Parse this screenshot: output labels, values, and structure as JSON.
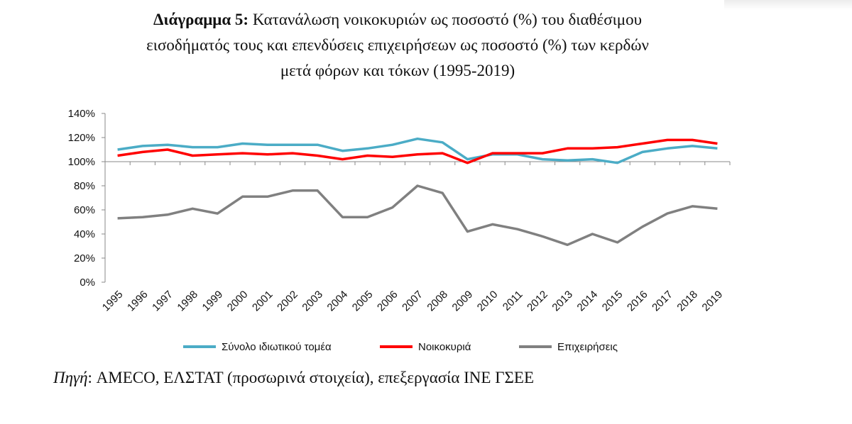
{
  "title": {
    "bold": "Διάγραμμα 5:",
    "line1": "Κατανάλωση νοικοκυριών ως ποσοστό (%) του διαθέσιμου",
    "line2": "εισοδήματός τους και επενδύσεις επιχειρήσεων ως ποσοστό (%) των κερδών",
    "line3": "μετά φόρων και τόκων (1995-2019)"
  },
  "chart_data": {
    "type": "line",
    "x": [
      "1995",
      "1996",
      "1997",
      "1998",
      "1999",
      "2000",
      "2001",
      "2002",
      "2003",
      "2004",
      "2005",
      "2006",
      "2007",
      "2008",
      "2009",
      "2010",
      "2011",
      "2012",
      "2013",
      "2014",
      "2015",
      "2016",
      "2017",
      "2018",
      "2019"
    ],
    "ylim": [
      0,
      140
    ],
    "yticks": [
      0,
      20,
      40,
      60,
      80,
      100,
      120,
      140
    ],
    "ytick_labels": [
      "0%",
      "20%",
      "40%",
      "60%",
      "80%",
      "100%",
      "120%",
      "140%"
    ],
    "grid": false,
    "legend_position": "bottom",
    "series": [
      {
        "name": "Σύνολο ιδιωτικού τομέα",
        "color": "#4bacc6",
        "values": [
          110,
          113,
          114,
          112,
          112,
          115,
          114,
          114,
          114,
          109,
          111,
          114,
          119,
          116,
          102,
          106,
          106,
          102,
          101,
          102,
          99,
          108,
          111,
          113,
          111
        ]
      },
      {
        "name": "Νοικοκυριά",
        "color": "#ff0000",
        "values": [
          105,
          108,
          110,
          105,
          106,
          107,
          106,
          107,
          105,
          102,
          105,
          104,
          106,
          107,
          99,
          107,
          107,
          107,
          111,
          111,
          112,
          115,
          118,
          118,
          115
        ]
      },
      {
        "name": "Επιχειρήσεις",
        "color": "#808080",
        "values": [
          53,
          54,
          56,
          61,
          57,
          71,
          71,
          76,
          76,
          54,
          54,
          62,
          80,
          74,
          42,
          48,
          44,
          38,
          31,
          40,
          33,
          46,
          57,
          63,
          61
        ]
      }
    ]
  },
  "source": {
    "label": "Πηγή",
    "text": ": AMECO, ΕΛΣΤΑΤ (προσωρινά στοιχεία), επεξεργασία ΙΝΕ ΓΣΕΕ"
  }
}
